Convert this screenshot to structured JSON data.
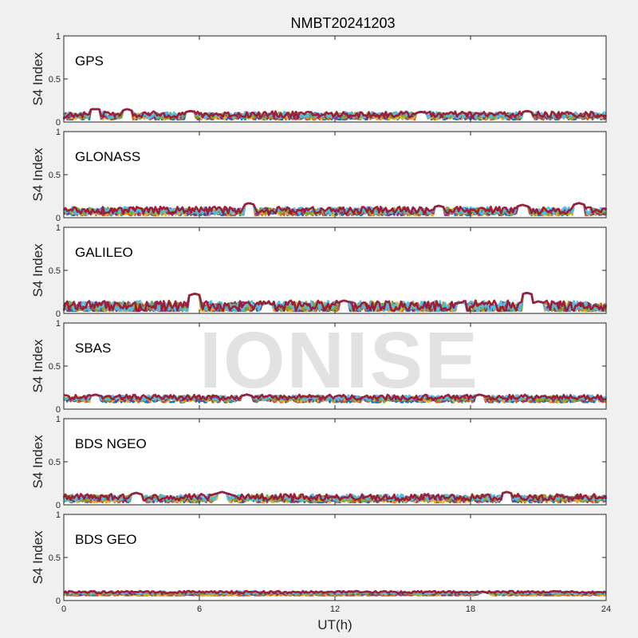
{
  "title": "NMBT20241203",
  "watermark": "IONISE",
  "xlabel": "UT(h)",
  "ylabel": "S4 Index",
  "x_ticks": [
    "0",
    "6",
    "12",
    "18",
    "24"
  ],
  "y_ticks": [
    "0",
    "0.5",
    "1"
  ],
  "colors": [
    "#0072bd",
    "#d95319",
    "#edb120",
    "#7e2f8e",
    "#77ac30",
    "#4dbeee",
    "#a2142f"
  ],
  "chart_data": [
    {
      "type": "line",
      "panel": "GPS",
      "xlim": [
        0,
        24
      ],
      "ylim": [
        0,
        1
      ],
      "approx_range": [
        0.03,
        0.15
      ],
      "peaks": [
        [
          1.4,
          0.16
        ],
        [
          2.8,
          0.15
        ],
        [
          5.6,
          0.13
        ],
        [
          15.8,
          0.12
        ],
        [
          20.5,
          0.13
        ]
      ],
      "level": 0.07
    },
    {
      "type": "line",
      "panel": "GLONASS",
      "xlim": [
        0,
        24
      ],
      "ylim": [
        0,
        1
      ],
      "approx_range": [
        0.03,
        0.17
      ],
      "peaks": [
        [
          8.2,
          0.17
        ],
        [
          16.6,
          0.14
        ],
        [
          20.3,
          0.15
        ],
        [
          22.8,
          0.17
        ]
      ],
      "level": 0.07
    },
    {
      "type": "line",
      "panel": "GALILEO",
      "xlim": [
        0,
        24
      ],
      "ylim": [
        0,
        1
      ],
      "approx_range": [
        0.03,
        0.24
      ],
      "peaks": [
        [
          5.8,
          0.23
        ],
        [
          9.0,
          0.12
        ],
        [
          12.4,
          0.15
        ],
        [
          17.6,
          0.13
        ],
        [
          20.5,
          0.24
        ],
        [
          21.0,
          0.14
        ]
      ],
      "level": 0.07
    },
    {
      "type": "line",
      "panel": "SBAS",
      "xlim": [
        0,
        24
      ],
      "ylim": [
        0,
        1
      ],
      "approx_range": [
        0.08,
        0.18
      ],
      "peaks": [
        [
          1.4,
          0.17
        ],
        [
          8.1,
          0.17
        ],
        [
          18.4,
          0.17
        ]
      ],
      "level": 0.12
    },
    {
      "type": "line",
      "panel": "BDS NGEO",
      "xlim": [
        0,
        24
      ],
      "ylim": [
        0,
        1
      ],
      "approx_range": [
        0.03,
        0.16
      ],
      "peaks": [
        [
          3.2,
          0.14
        ],
        [
          7.0,
          0.15
        ],
        [
          19.6,
          0.15
        ]
      ],
      "level": 0.07
    },
    {
      "type": "line",
      "panel": "BDS GEO",
      "xlim": [
        0,
        24
      ],
      "ylim": [
        0,
        1
      ],
      "approx_range": [
        0.06,
        0.11
      ],
      "peaks": [
        [
          18.6,
          0.1
        ]
      ],
      "level": 0.08
    }
  ]
}
